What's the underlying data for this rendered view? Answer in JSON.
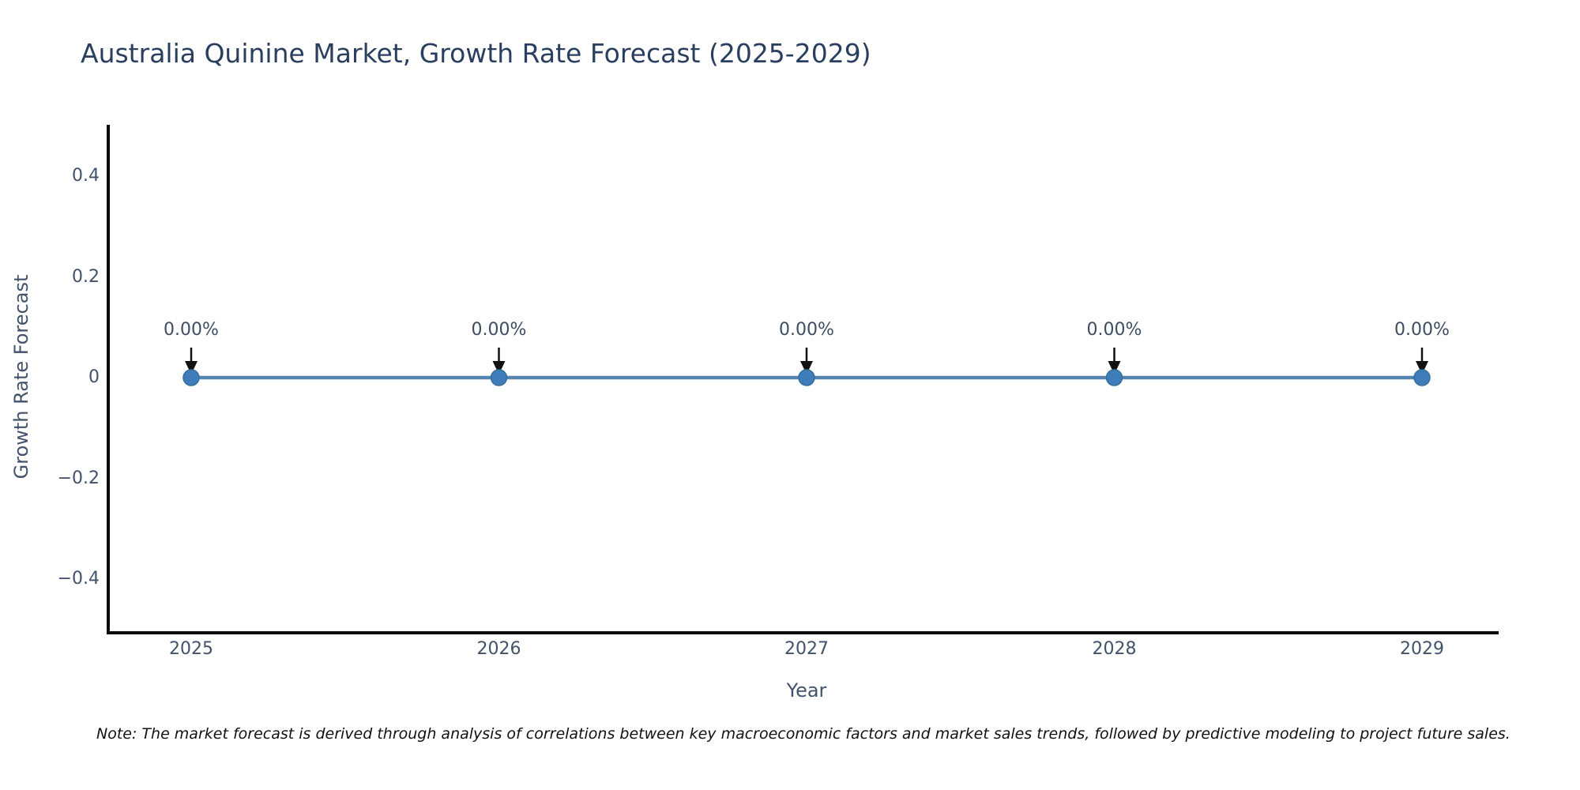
{
  "chart_data": {
    "type": "line",
    "title": "Australia Quinine Market, Growth Rate Forecast (2025-2029)",
    "xlabel": "Year",
    "ylabel": "Growth Rate Forecast",
    "x": [
      2025,
      2026,
      2027,
      2028,
      2029
    ],
    "series": [
      {
        "name": "Growth Rate Forecast",
        "values": [
          0,
          0,
          0,
          0,
          0
        ]
      }
    ],
    "point_labels": [
      "0.00%",
      "0.00%",
      "0.00%",
      "0.00%",
      "0.00%"
    ],
    "xtick_labels": [
      "2025",
      "2026",
      "2027",
      "2028",
      "2029"
    ],
    "yticks": [
      0.4,
      0.2,
      0,
      -0.2,
      -0.4
    ],
    "ytick_labels": [
      "0.4",
      "0.2",
      "0",
      "−0.2",
      "−0.4"
    ],
    "ylim": [
      -0.5,
      0.5
    ],
    "grid": false,
    "legend": "none",
    "note": "Note: The market forecast is derived through analysis of correlations between key macroeconomic factors and market sales trends, followed by predictive modeling to project future sales.",
    "colors": {
      "line": "#5585ae",
      "marker": "#3f7cba",
      "marker_edge": "#35709f",
      "spine": "#0a0a0a",
      "arrow": "#111111",
      "title_text": "#2a3f5f",
      "tick_text": "#42526b",
      "note_text": "#111111"
    }
  }
}
